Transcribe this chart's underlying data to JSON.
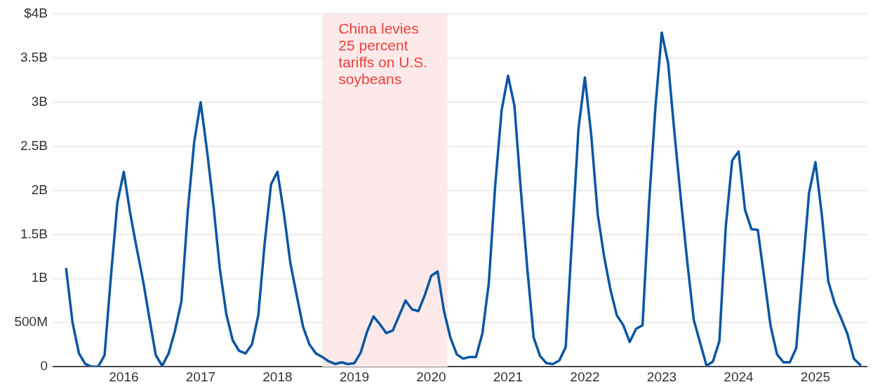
{
  "chart_data": {
    "type": "line",
    "x": [
      "2015-04",
      "2015-05",
      "2015-06",
      "2015-07",
      "2015-08",
      "2015-09",
      "2015-10",
      "2015-11",
      "2015-12",
      "2016-01",
      "2016-02",
      "2016-03",
      "2016-04",
      "2016-05",
      "2016-06",
      "2016-07",
      "2016-08",
      "2016-09",
      "2016-10",
      "2016-11",
      "2016-12",
      "2017-01",
      "2017-02",
      "2017-03",
      "2017-04",
      "2017-05",
      "2017-06",
      "2017-07",
      "2017-08",
      "2017-09",
      "2017-10",
      "2017-11",
      "2017-12",
      "2018-01",
      "2018-02",
      "2018-03",
      "2018-04",
      "2018-05",
      "2018-06",
      "2018-07",
      "2018-08",
      "2018-09",
      "2018-10",
      "2018-11",
      "2018-12",
      "2019-01",
      "2019-02",
      "2019-03",
      "2019-04",
      "2019-05",
      "2019-06",
      "2019-07",
      "2019-08",
      "2019-09",
      "2019-10",
      "2019-11",
      "2019-12",
      "2020-01",
      "2020-02",
      "2020-03",
      "2020-04",
      "2020-05",
      "2020-06",
      "2020-07",
      "2020-08",
      "2020-09",
      "2020-10",
      "2020-11",
      "2020-12",
      "2021-01",
      "2021-02",
      "2021-03",
      "2021-04",
      "2021-05",
      "2021-06",
      "2021-07",
      "2021-08",
      "2021-09",
      "2021-10",
      "2021-11",
      "2021-12",
      "2022-01",
      "2022-02",
      "2022-03",
      "2022-04",
      "2022-05",
      "2022-06",
      "2022-07",
      "2022-08",
      "2022-09",
      "2022-10",
      "2022-11",
      "2022-12",
      "2023-01",
      "2023-02",
      "2023-03",
      "2023-04",
      "2023-05",
      "2023-06",
      "2023-07",
      "2023-08",
      "2023-09",
      "2023-10",
      "2023-11",
      "2023-12",
      "2024-01",
      "2024-02",
      "2024-03",
      "2024-04",
      "2024-05",
      "2024-06",
      "2024-07",
      "2024-08",
      "2024-09",
      "2024-10",
      "2024-11",
      "2024-12",
      "2025-01",
      "2025-02",
      "2025-03",
      "2025-04",
      "2025-05",
      "2025-06",
      "2025-07",
      "2025-08"
    ],
    "series": [
      {
        "color": "#0a56a4",
        "values": [
          1110000000,
          500000000,
          150000000,
          30000000,
          0,
          0,
          130000000,
          1030000000,
          1860000000,
          2210000000,
          1740000000,
          1350000000,
          980000000,
          550000000,
          130000000,
          10000000,
          150000000,
          410000000,
          740000000,
          1770000000,
          2550000000,
          3000000000,
          2450000000,
          1830000000,
          1110000000,
          600000000,
          300000000,
          180000000,
          150000000,
          250000000,
          580000000,
          1400000000,
          2070000000,
          2210000000,
          1740000000,
          1180000000,
          810000000,
          450000000,
          250000000,
          150000000,
          110000000,
          60000000,
          30000000,
          50000000,
          30000000,
          40000000,
          160000000,
          400000000,
          570000000,
          480000000,
          380000000,
          410000000,
          580000000,
          750000000,
          650000000,
          630000000,
          810000000,
          1030000000,
          1080000000,
          630000000,
          330000000,
          140000000,
          90000000,
          110000000,
          110000000,
          380000000,
          950000000,
          2060000000,
          2910000000,
          3300000000,
          2960000000,
          2000000000,
          1120000000,
          330000000,
          120000000,
          40000000,
          30000000,
          70000000,
          220000000,
          1460000000,
          2700000000,
          3280000000,
          2620000000,
          1730000000,
          1250000000,
          870000000,
          580000000,
          470000000,
          280000000,
          430000000,
          470000000,
          1830000000,
          2930000000,
          3790000000,
          3440000000,
          2640000000,
          1890000000,
          1180000000,
          530000000,
          270000000,
          10000000,
          60000000,
          290000000,
          1590000000,
          2340000000,
          2440000000,
          1780000000,
          1560000000,
          1550000000,
          1010000000,
          460000000,
          140000000,
          50000000,
          50000000,
          210000000,
          1090000000,
          1970000000,
          2320000000,
          1720000000,
          970000000,
          720000000,
          550000000,
          370000000,
          90000000,
          20000000
        ]
      }
    ],
    "xlim": [
      "2015-02",
      "2025-09"
    ],
    "xticks": [
      {
        "value": "2016-01",
        "label": "2016"
      },
      {
        "value": "2017-01",
        "label": "2017"
      },
      {
        "value": "2018-01",
        "label": "2018"
      },
      {
        "value": "2019-01",
        "label": "2019"
      },
      {
        "value": "2020-01",
        "label": "2020"
      },
      {
        "value": "2021-01",
        "label": "2021"
      },
      {
        "value": "2022-01",
        "label": "2022"
      },
      {
        "value": "2023-01",
        "label": "2023"
      },
      {
        "value": "2024-01",
        "label": "2024"
      },
      {
        "value": "2025-01",
        "label": "2025"
      }
    ],
    "ylim": [
      0,
      4000000000
    ],
    "yticks": [
      {
        "value": 0,
        "label": "0"
      },
      {
        "value": 500000000,
        "label": "500M"
      },
      {
        "value": 1000000000,
        "label": "1B"
      },
      {
        "value": 1500000000,
        "label": "1.5B"
      },
      {
        "value": 2000000000,
        "label": "2B"
      },
      {
        "value": 2500000000,
        "label": "2.5B"
      },
      {
        "value": 3000000000,
        "label": "3B"
      },
      {
        "value": 3500000000,
        "label": "3.5B"
      },
      {
        "value": 4000000000,
        "label": "$4B"
      }
    ],
    "bands": [
      {
        "axis": "x",
        "from": "2018-08",
        "to": "2020-03-18",
        "label": "China levies\n25 percent\ntariffs on U.S.\nsoybeans",
        "color": "#fde9e9"
      }
    ],
    "grid": "y",
    "marker": "none",
    "line_style": "solid",
    "legend": false
  }
}
